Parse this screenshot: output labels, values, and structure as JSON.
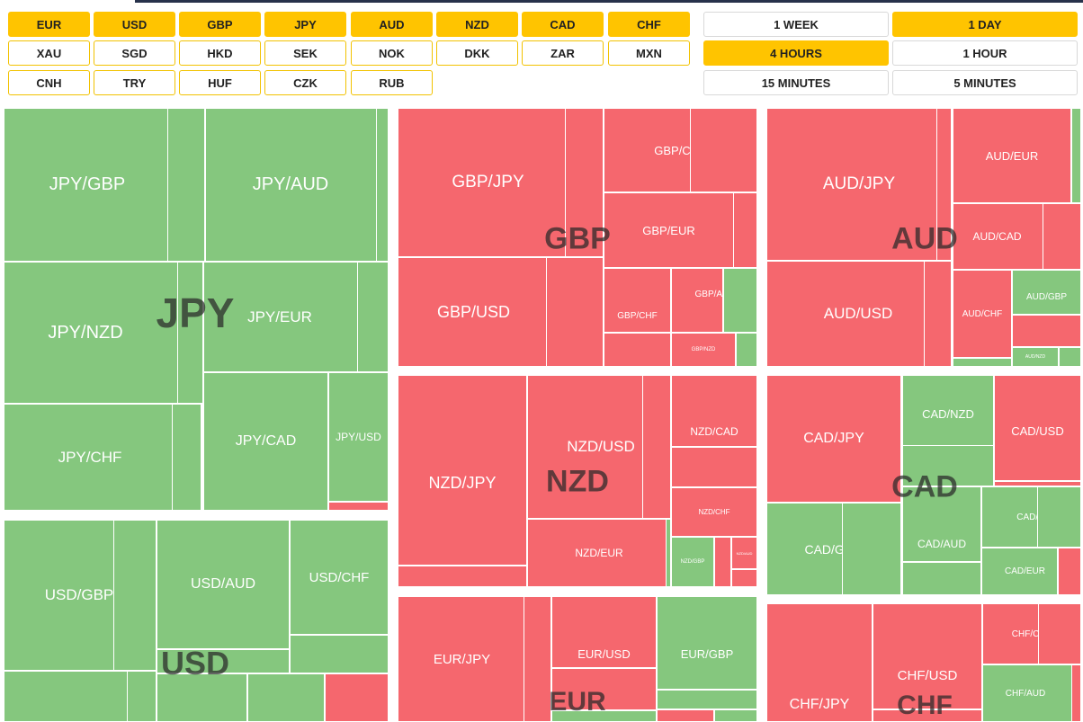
{
  "currencies": {
    "row1": [
      {
        "label": "EUR",
        "active": true
      },
      {
        "label": "USD",
        "active": true
      },
      {
        "label": "GBP",
        "active": true
      },
      {
        "label": "JPY",
        "active": true
      },
      {
        "label": "AUD",
        "active": true
      },
      {
        "label": "NZD",
        "active": true
      },
      {
        "label": "CAD",
        "active": true
      },
      {
        "label": "CHF",
        "active": true
      }
    ],
    "row2": [
      {
        "label": "XAU",
        "active": false
      },
      {
        "label": "SGD",
        "active": false
      },
      {
        "label": "HKD",
        "active": false
      },
      {
        "label": "SEK",
        "active": false
      },
      {
        "label": "NOK",
        "active": false
      },
      {
        "label": "DKK",
        "active": false
      },
      {
        "label": "ZAR",
        "active": false
      },
      {
        "label": "MXN",
        "active": false
      }
    ],
    "row3": [
      {
        "label": "CNH",
        "active": false
      },
      {
        "label": "TRY",
        "active": false
      },
      {
        "label": "HUF",
        "active": false
      },
      {
        "label": "CZK",
        "active": false
      },
      {
        "label": "RUB",
        "active": false
      }
    ]
  },
  "timeframes": [
    {
      "label": "1 WEEK",
      "active": false
    },
    {
      "label": "1 DAY",
      "active": true
    },
    {
      "label": "4 HOURS",
      "active": true
    },
    {
      "label": "1 HOUR",
      "active": false
    },
    {
      "label": "15 MINUTES",
      "active": false
    },
    {
      "label": "5 MINUTES",
      "active": false
    }
  ],
  "colors": {
    "up": "#85c77e",
    "down": "#f5676e",
    "accent": "#ffc400"
  },
  "heatmap": {
    "JPY": {
      "label": "JPY",
      "pairs": {
        "a": "JPY/GBP",
        "b": "JPY/AUD",
        "c": "JPY/NZD",
        "d": "JPY/EUR",
        "e": "JPY/CHF",
        "f": "JPY/CAD",
        "g": "JPY/USD"
      }
    },
    "GBP": {
      "label": "GBP",
      "pairs": {
        "a": "GBP/JPY",
        "b": "GBP/CAD",
        "c": "GBP/EUR",
        "d": "GBP/USD",
        "e": "GBP/AUD",
        "f": "GBP/CHF",
        "g": "GBP/NZD"
      }
    },
    "AUD": {
      "label": "AUD",
      "pairs": {
        "a": "AUD/JPY",
        "b": "AUD/EUR",
        "c": "AUD/CAD",
        "d": "AUD/USD",
        "e": "AUD/CHF",
        "f": "AUD/GBP",
        "g": "AUD/NZD"
      }
    },
    "NZD": {
      "label": "NZD",
      "pairs": {
        "a": "NZD/JPY",
        "b": "NZD/USD",
        "c": "NZD/CAD",
        "d": "NZD/CHF",
        "e": "NZD/EUR",
        "f": "NZD/GBP",
        "g": "NZD/AUD"
      }
    },
    "CAD": {
      "label": "CAD",
      "pairs": {
        "a": "CAD/JPY",
        "b": "CAD/NZD",
        "c": "CAD/USD",
        "d": "CAD/CHF",
        "e": "CAD/GBP",
        "f": "CAD/AUD",
        "g": "CAD/EUR"
      }
    },
    "USD": {
      "label": "USD",
      "pairs": {
        "a": "USD/GBP",
        "b": "USD/AUD",
        "c": "USD/CHF"
      }
    },
    "EUR": {
      "label": "EUR",
      "pairs": {
        "a": "EUR/JPY",
        "b": "EUR/USD",
        "c": "EUR/GBP"
      }
    },
    "CHF": {
      "label": "CHF",
      "pairs": {
        "a": "CHF/JPY",
        "b": "CHF/USD",
        "c": "CHF/CAD",
        "d": "CHF/AUD"
      }
    }
  }
}
